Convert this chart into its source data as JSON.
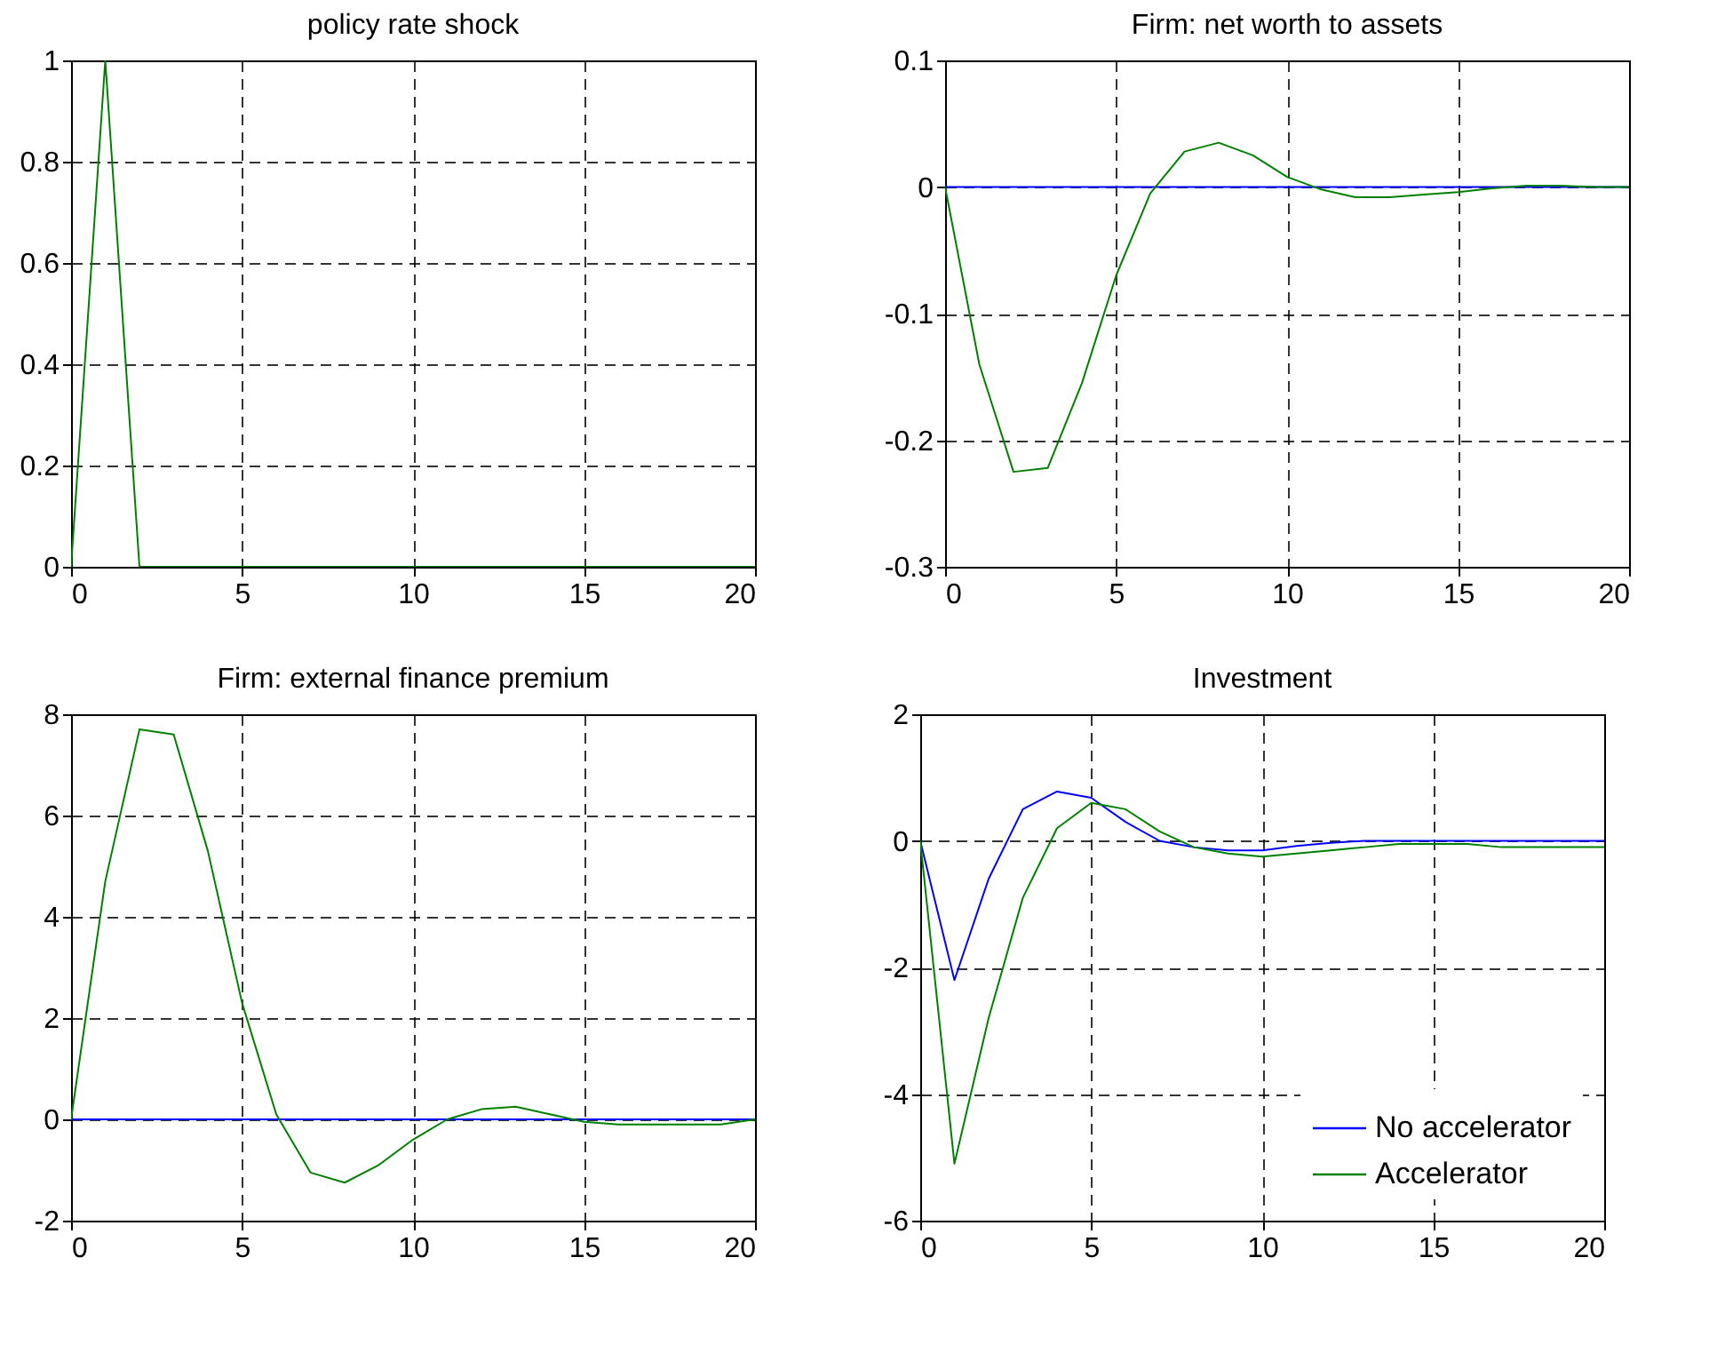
{
  "chart_data": [
    {
      "type": "line",
      "title": "policy rate shock",
      "x": [
        0,
        1,
        2,
        3,
        4,
        5,
        6,
        7,
        8,
        9,
        10,
        11,
        12,
        13,
        14,
        15,
        16,
        17,
        18,
        19,
        20
      ],
      "xlim": [
        0,
        20
      ],
      "xticks": [
        0,
        5,
        10,
        15,
        20
      ],
      "ylim": [
        0,
        1
      ],
      "yticks": [
        0,
        0.2,
        0.4,
        0.6,
        0.8,
        1
      ],
      "grid": true,
      "legend": false,
      "line_style": "solid",
      "series": [
        {
          "color": "#008000",
          "values": [
            0,
            1,
            0,
            0,
            0,
            0,
            0,
            0,
            0,
            0,
            0,
            0,
            0,
            0,
            0,
            0,
            0,
            0,
            0,
            0,
            0
          ]
        }
      ]
    },
    {
      "type": "line",
      "title": "Firm: net worth to assets",
      "x": [
        0,
        1,
        2,
        3,
        4,
        5,
        6,
        7,
        8,
        9,
        10,
        11,
        12,
        13,
        14,
        15,
        16,
        17,
        18,
        19,
        20
      ],
      "xlim": [
        0,
        20
      ],
      "xticks": [
        0,
        5,
        10,
        15,
        20
      ],
      "ylim": [
        -0.3,
        0.1
      ],
      "yticks": [
        -0.3,
        -0.2,
        -0.1,
        0,
        0.1
      ],
      "grid": true,
      "legend": false,
      "line_style": "solid",
      "series": [
        {
          "color": "#0000ff",
          "values": [
            0,
            0,
            0,
            0,
            0,
            0,
            0,
            0,
            0,
            0,
            0,
            0,
            0,
            0,
            0,
            0,
            0,
            0,
            0,
            0,
            0
          ]
        },
        {
          "color": "#008000",
          "values": [
            0,
            -0.14,
            -0.225,
            -0.222,
            -0.155,
            -0.07,
            -0.005,
            0.028,
            0.035,
            0.025,
            0.008,
            -0.002,
            -0.008,
            -0.008,
            -0.006,
            -0.004,
            -0.001,
            0.001,
            0.001,
            0,
            0
          ]
        }
      ]
    },
    {
      "type": "line",
      "title": "Firm: external finance premium",
      "x": [
        0,
        1,
        2,
        3,
        4,
        5,
        6,
        7,
        8,
        9,
        10,
        11,
        12,
        13,
        14,
        15,
        16,
        17,
        18,
        19,
        20
      ],
      "xlim": [
        0,
        20
      ],
      "xticks": [
        0,
        5,
        10,
        15,
        20
      ],
      "ylim": [
        -2,
        8
      ],
      "yticks": [
        -2,
        0,
        2,
        4,
        6,
        8
      ],
      "grid": true,
      "legend": false,
      "line_style": "solid",
      "series": [
        {
          "color": "#0000ff",
          "values": [
            0,
            0,
            0,
            0,
            0,
            0,
            0,
            0,
            0,
            0,
            0,
            0,
            0,
            0,
            0,
            0,
            0,
            0,
            0,
            0,
            0
          ]
        },
        {
          "color": "#008000",
          "values": [
            0,
            4.7,
            7.7,
            7.6,
            5.3,
            2.3,
            0.1,
            -1.05,
            -1.25,
            -0.9,
            -0.4,
            0,
            0.2,
            0.25,
            0.1,
            -0.05,
            -0.1,
            -0.1,
            -0.1,
            -0.1,
            0
          ]
        }
      ]
    },
    {
      "type": "line",
      "title": "Investment",
      "x": [
        0,
        1,
        2,
        3,
        4,
        5,
        6,
        7,
        8,
        9,
        10,
        11,
        12,
        13,
        14,
        15,
        16,
        17,
        18,
        19,
        20
      ],
      "xlim": [
        0,
        20
      ],
      "xticks": [
        0,
        5,
        10,
        15,
        20
      ],
      "ylim": [
        -6,
        2
      ],
      "yticks": [
        -6,
        -4,
        -2,
        0,
        2
      ],
      "grid": true,
      "legend": "bottom right",
      "line_style": "solid",
      "series": [
        {
          "name": "No accelerator",
          "color": "#0000ff",
          "values": [
            0,
            -2.2,
            -0.6,
            0.5,
            0.78,
            0.68,
            0.3,
            0,
            -0.1,
            -0.15,
            -0.15,
            -0.08,
            -0.03,
            0,
            0,
            0,
            0,
            0,
            0,
            0,
            0
          ]
        },
        {
          "name": "Accelerator",
          "color": "#008000",
          "values": [
            0,
            -5.1,
            -2.8,
            -0.9,
            0.2,
            0.6,
            0.5,
            0.15,
            -0.1,
            -0.2,
            -0.25,
            -0.2,
            -0.15,
            -0.1,
            -0.05,
            -0.05,
            -0.05,
            -0.1,
            -0.1,
            -0.1,
            -0.1
          ]
        }
      ]
    }
  ]
}
